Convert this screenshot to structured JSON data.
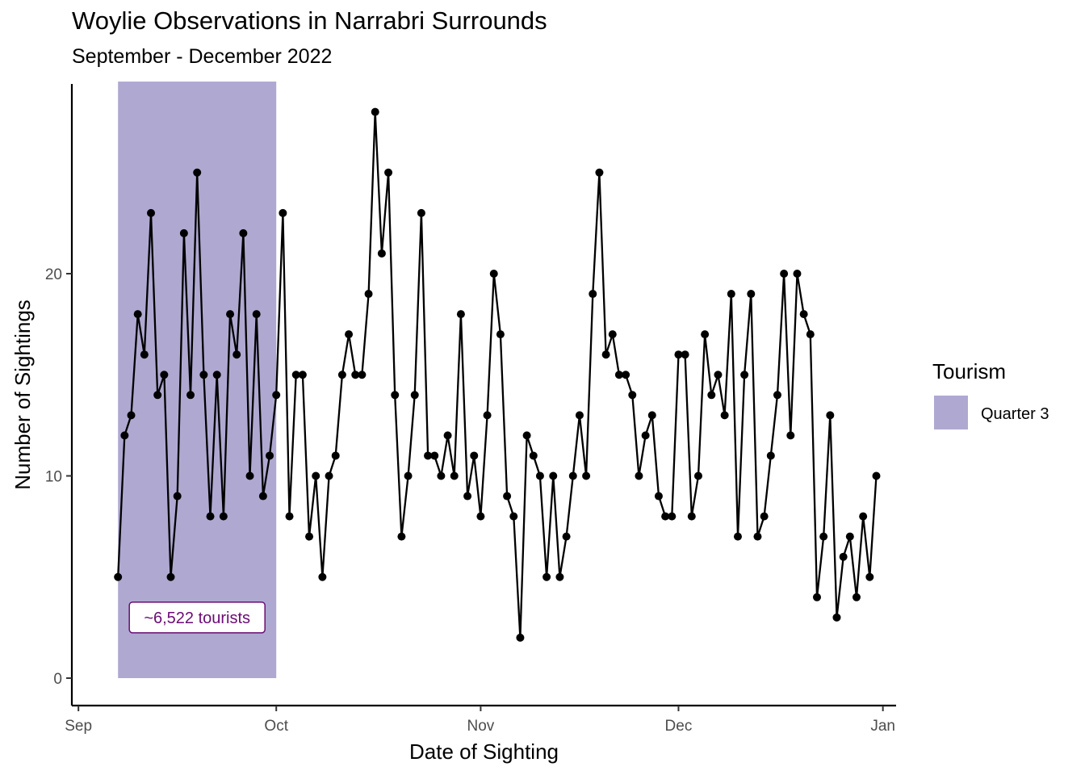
{
  "chart_data": {
    "type": "line",
    "title": "Woylie Observations in Narrabri Surrounds",
    "subtitle": "September - December 2022",
    "xlabel": "Date of Sighting",
    "ylabel": "Number of Sightings",
    "x_ticks": [
      {
        "date": "2022-09-01",
        "label": "Sep"
      },
      {
        "date": "2022-10-01",
        "label": "Oct"
      },
      {
        "date": "2022-11-01",
        "label": "Nov"
      },
      {
        "date": "2022-12-01",
        "label": "Dec"
      },
      {
        "date": "2023-01-01",
        "label": "Jan"
      }
    ],
    "y_ticks": [
      0,
      10,
      20
    ],
    "xlim": [
      "2022-08-31",
      "2023-01-03"
    ],
    "ylim": [
      0,
      28.5
    ],
    "grid": false,
    "x_start_date": "2022-09-07",
    "values": [
      5,
      12,
      13,
      18,
      16,
      23,
      14,
      15,
      5,
      9,
      22,
      14,
      25,
      15,
      8,
      15,
      8,
      18,
      16,
      22,
      10,
      18,
      9,
      11,
      14,
      23,
      8,
      15,
      15,
      7,
      10,
      5,
      10,
      11,
      15,
      17,
      15,
      15,
      19,
      28,
      21,
      25,
      14,
      7,
      10,
      14,
      23,
      11,
      11,
      10,
      12,
      10,
      18,
      9,
      11,
      8,
      13,
      20,
      17,
      9,
      8,
      2,
      12,
      11,
      10,
      5,
      10,
      5,
      7,
      10,
      13,
      10,
      19,
      25,
      16,
      17,
      15,
      15,
      14,
      10,
      12,
      13,
      9,
      8,
      8,
      16,
      16,
      8,
      10,
      17,
      14,
      15,
      13,
      19,
      7,
      15,
      19,
      7,
      8,
      11,
      14,
      20,
      12,
      20,
      18,
      17,
      4,
      7,
      13,
      3,
      6,
      7,
      4,
      8,
      5,
      10
    ],
    "shaded_region": {
      "x_start": "2022-09-07",
      "x_end": "2022-10-01",
      "y_start": 0,
      "y_end": 29.5,
      "color": "#afa9d1",
      "legend_label": "Quarter 3"
    },
    "annotation": {
      "text": "~6,522 tourists",
      "date": "2022-09-19",
      "y": 3,
      "text_color": "#6a0c73",
      "border_color": "#6a0c73"
    },
    "legend": {
      "title": "Tourism",
      "position": "right",
      "items": [
        {
          "label": "Quarter 3",
          "color": "#afa9d1"
        }
      ]
    },
    "line_color": "#000000",
    "point_color": "#000000"
  }
}
